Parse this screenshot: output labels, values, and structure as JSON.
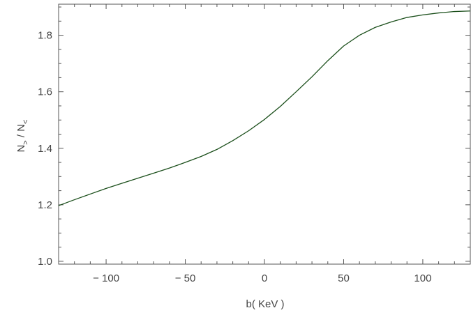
{
  "chart_data": {
    "type": "line",
    "title": "",
    "xlabel": "b( KeV )",
    "ylabel_parts": {
      "n1": "N",
      "sub1": ">",
      "sep": " / ",
      "n2": "N",
      "sub2": "<"
    },
    "xlim": [
      -130,
      130
    ],
    "ylim": [
      0.99,
      1.91
    ],
    "xticks_major": [
      -100,
      -50,
      0,
      50,
      100
    ],
    "xticks_major_labels": [
      "− 100",
      "− 50",
      "0",
      "50",
      "100"
    ],
    "yticks_major": [
      1.0,
      1.2,
      1.4,
      1.6,
      1.8
    ],
    "yticks_major_labels": [
      "1.0",
      "1.2",
      "1.4",
      "1.6",
      "1.8"
    ],
    "grid": false,
    "series": [
      {
        "color": "#1b4f1b",
        "x": [
          -130,
          -120,
          -110,
          -100,
          -90,
          -80,
          -70,
          -60,
          -50,
          -40,
          -30,
          -20,
          -10,
          0,
          10,
          20,
          30,
          40,
          50,
          60,
          70,
          80,
          90,
          100,
          110,
          120,
          130
        ],
        "y": [
          1.197,
          1.218,
          1.238,
          1.258,
          1.276,
          1.294,
          1.312,
          1.33,
          1.35,
          1.371,
          1.396,
          1.427,
          1.462,
          1.502,
          1.548,
          1.6,
          1.653,
          1.71,
          1.762,
          1.8,
          1.828,
          1.847,
          1.863,
          1.872,
          1.879,
          1.884,
          1.886
        ]
      }
    ]
  }
}
